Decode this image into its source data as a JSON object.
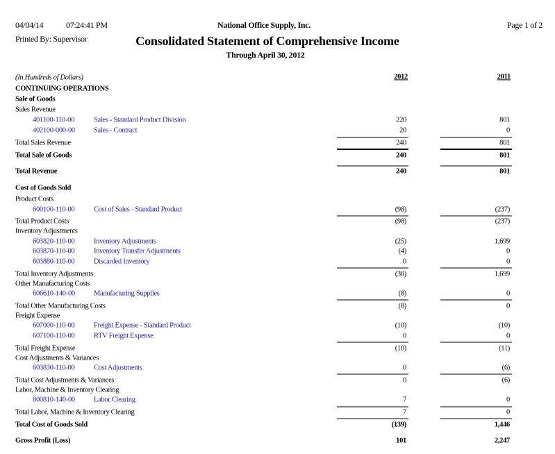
{
  "header": {
    "date": "04/04/14",
    "time": "07:24:41 PM",
    "company": "National Office Supply, Inc.",
    "page": "Page 1 of 2",
    "printed_by": "Printed By: Supervisor",
    "title": "Consolidated Statement of Comprehensive Income",
    "subtitle": "Through April 30, 2012"
  },
  "columns": {
    "units": "(In Hundreds of Dollars)",
    "years": [
      "2012",
      "2011"
    ]
  },
  "report": {
    "rows": [
      {
        "label": "CONTINUING OPERATIONS"
      },
      {
        "label": "Sale of Goods"
      },
      {
        "label": "Sales Revenue"
      },
      {
        "account": "401100-110-00",
        "description": "Sales - Standard Product Division",
        "values": [
          "220",
          "801"
        ]
      },
      {
        "account": "402100-000-00",
        "description": "Sales - Contract",
        "values": [
          "20",
          "0"
        ]
      },
      {
        "label": "Total Sales Revenue",
        "values": [
          "240",
          "801"
        ]
      },
      {
        "label": "Total Sale of Goods",
        "values": [
          "240",
          "801"
        ]
      },
      {
        "label": "Total Revenue",
        "values": [
          "240",
          "801"
        ]
      },
      {
        "label": "Cost of Goods Sold"
      },
      {
        "label": "Product Costs"
      },
      {
        "account": "600100-110-00",
        "description": "Cost of Sales - Standard Product",
        "values": [
          "(98)",
          "(237)"
        ]
      },
      {
        "label": "Total Product Costs",
        "values": [
          "(98)",
          "(237)"
        ]
      },
      {
        "label": "Inventory Adjustments"
      },
      {
        "account": "603820-110-00",
        "description": "Inventory Adjustments",
        "values": [
          "(25)",
          "1,699"
        ]
      },
      {
        "account": "603870-110-00",
        "description": "Inventory Transfer Adjustments",
        "values": [
          "(4)",
          "0"
        ]
      },
      {
        "account": "603880-110-00",
        "description": "Discarded Inventory",
        "values": [
          "0",
          "0"
        ]
      },
      {
        "label": "Total Inventory Adjustments",
        "values": [
          "(30)",
          "1,699"
        ]
      },
      {
        "label": "Other Manufacturing Costs"
      },
      {
        "account": "606610-140-00",
        "description": "Manufacturing Supplies",
        "values": [
          "(8)",
          "0"
        ]
      },
      {
        "label": "Total Other Manufacturing Costs",
        "values": [
          "(8)",
          "0"
        ]
      },
      {
        "label": "Freight Expense"
      },
      {
        "account": "607000-110-00",
        "description": "Freight Expense - Standard Product",
        "values": [
          "(10)",
          "(10)"
        ]
      },
      {
        "account": "607100-110-00",
        "description": "RTV Freight Expense",
        "values": [
          "0",
          "0"
        ]
      },
      {
        "label": "Total Freight Expense",
        "values": [
          "(10)",
          "(11)"
        ]
      },
      {
        "label": "Cost Adjustments & Variances"
      },
      {
        "account": "603830-110-00",
        "description": "Cost Adjustments",
        "values": [
          "0",
          "(6)"
        ]
      },
      {
        "label": "Total Cost Adjustments & Variances",
        "values": [
          "0",
          "(6)"
        ]
      },
      {
        "label": "Labor, Machine & Inventory Clearing"
      },
      {
        "account": "800810-140-00",
        "description": "Labor Clearing",
        "values": [
          "7",
          "0"
        ]
      },
      {
        "label": "Total Labor, Machine & Inventory Clearing",
        "values": [
          "7",
          "0"
        ]
      },
      {
        "label": "Total Cost of Goods Sold",
        "values": [
          "(139)",
          "1,446"
        ]
      },
      {
        "label": "Gross Profit (Loss)",
        "values": [
          "101",
          "2,247"
        ]
      }
    ]
  }
}
